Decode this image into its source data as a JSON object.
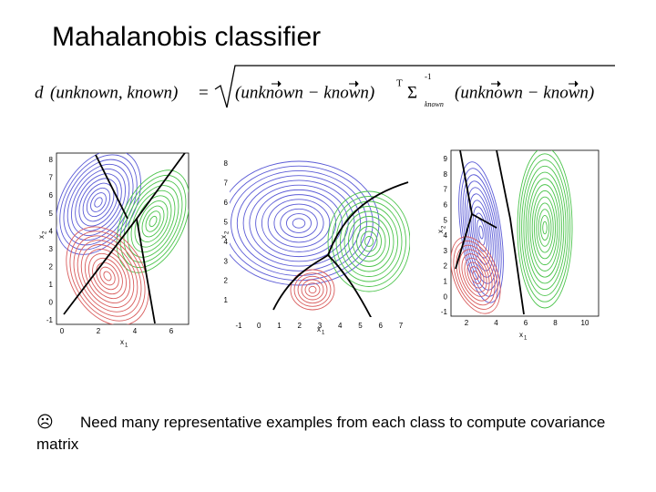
{
  "title": "Mahalanobis classifier",
  "formula": {
    "d": "d",
    "args": "(unknown, known)",
    "eq": "=",
    "diff1": "(unknown − known)",
    "transpose": "T",
    "sigma": "Σ",
    "inverse": "-1",
    "sub": "known",
    "diff2": "(unknown − known)"
  },
  "plots": [
    {
      "y_ticks": [
        8,
        7,
        6,
        5,
        4,
        3,
        2,
        1,
        0,
        -1
      ],
      "x_ticks": [
        0,
        2,
        4,
        6
      ],
      "x_label": "x",
      "x_sub": "1",
      "y_label": "x",
      "y_sub": "2"
    },
    {
      "y_ticks": [
        8,
        7,
        6,
        5,
        4,
        3,
        2,
        1
      ],
      "x_ticks": [
        -1,
        0,
        1,
        2,
        3,
        4,
        5,
        6,
        7
      ],
      "x_label": "x",
      "x_sub": "1",
      "y_label": "x",
      "y_sub": "2"
    },
    {
      "y_ticks": [
        9,
        8,
        7,
        6,
        5,
        4,
        3,
        2,
        1,
        0,
        -1
      ],
      "x_ticks": [
        2,
        4,
        6,
        8,
        10
      ],
      "x_label": "x",
      "x_sub": "1",
      "y_label": "x",
      "y_sub": "2"
    }
  ],
  "bullet": {
    "symbol": "☹",
    "text": "Need many representative examples from each class to compute covariance matrix"
  }
}
